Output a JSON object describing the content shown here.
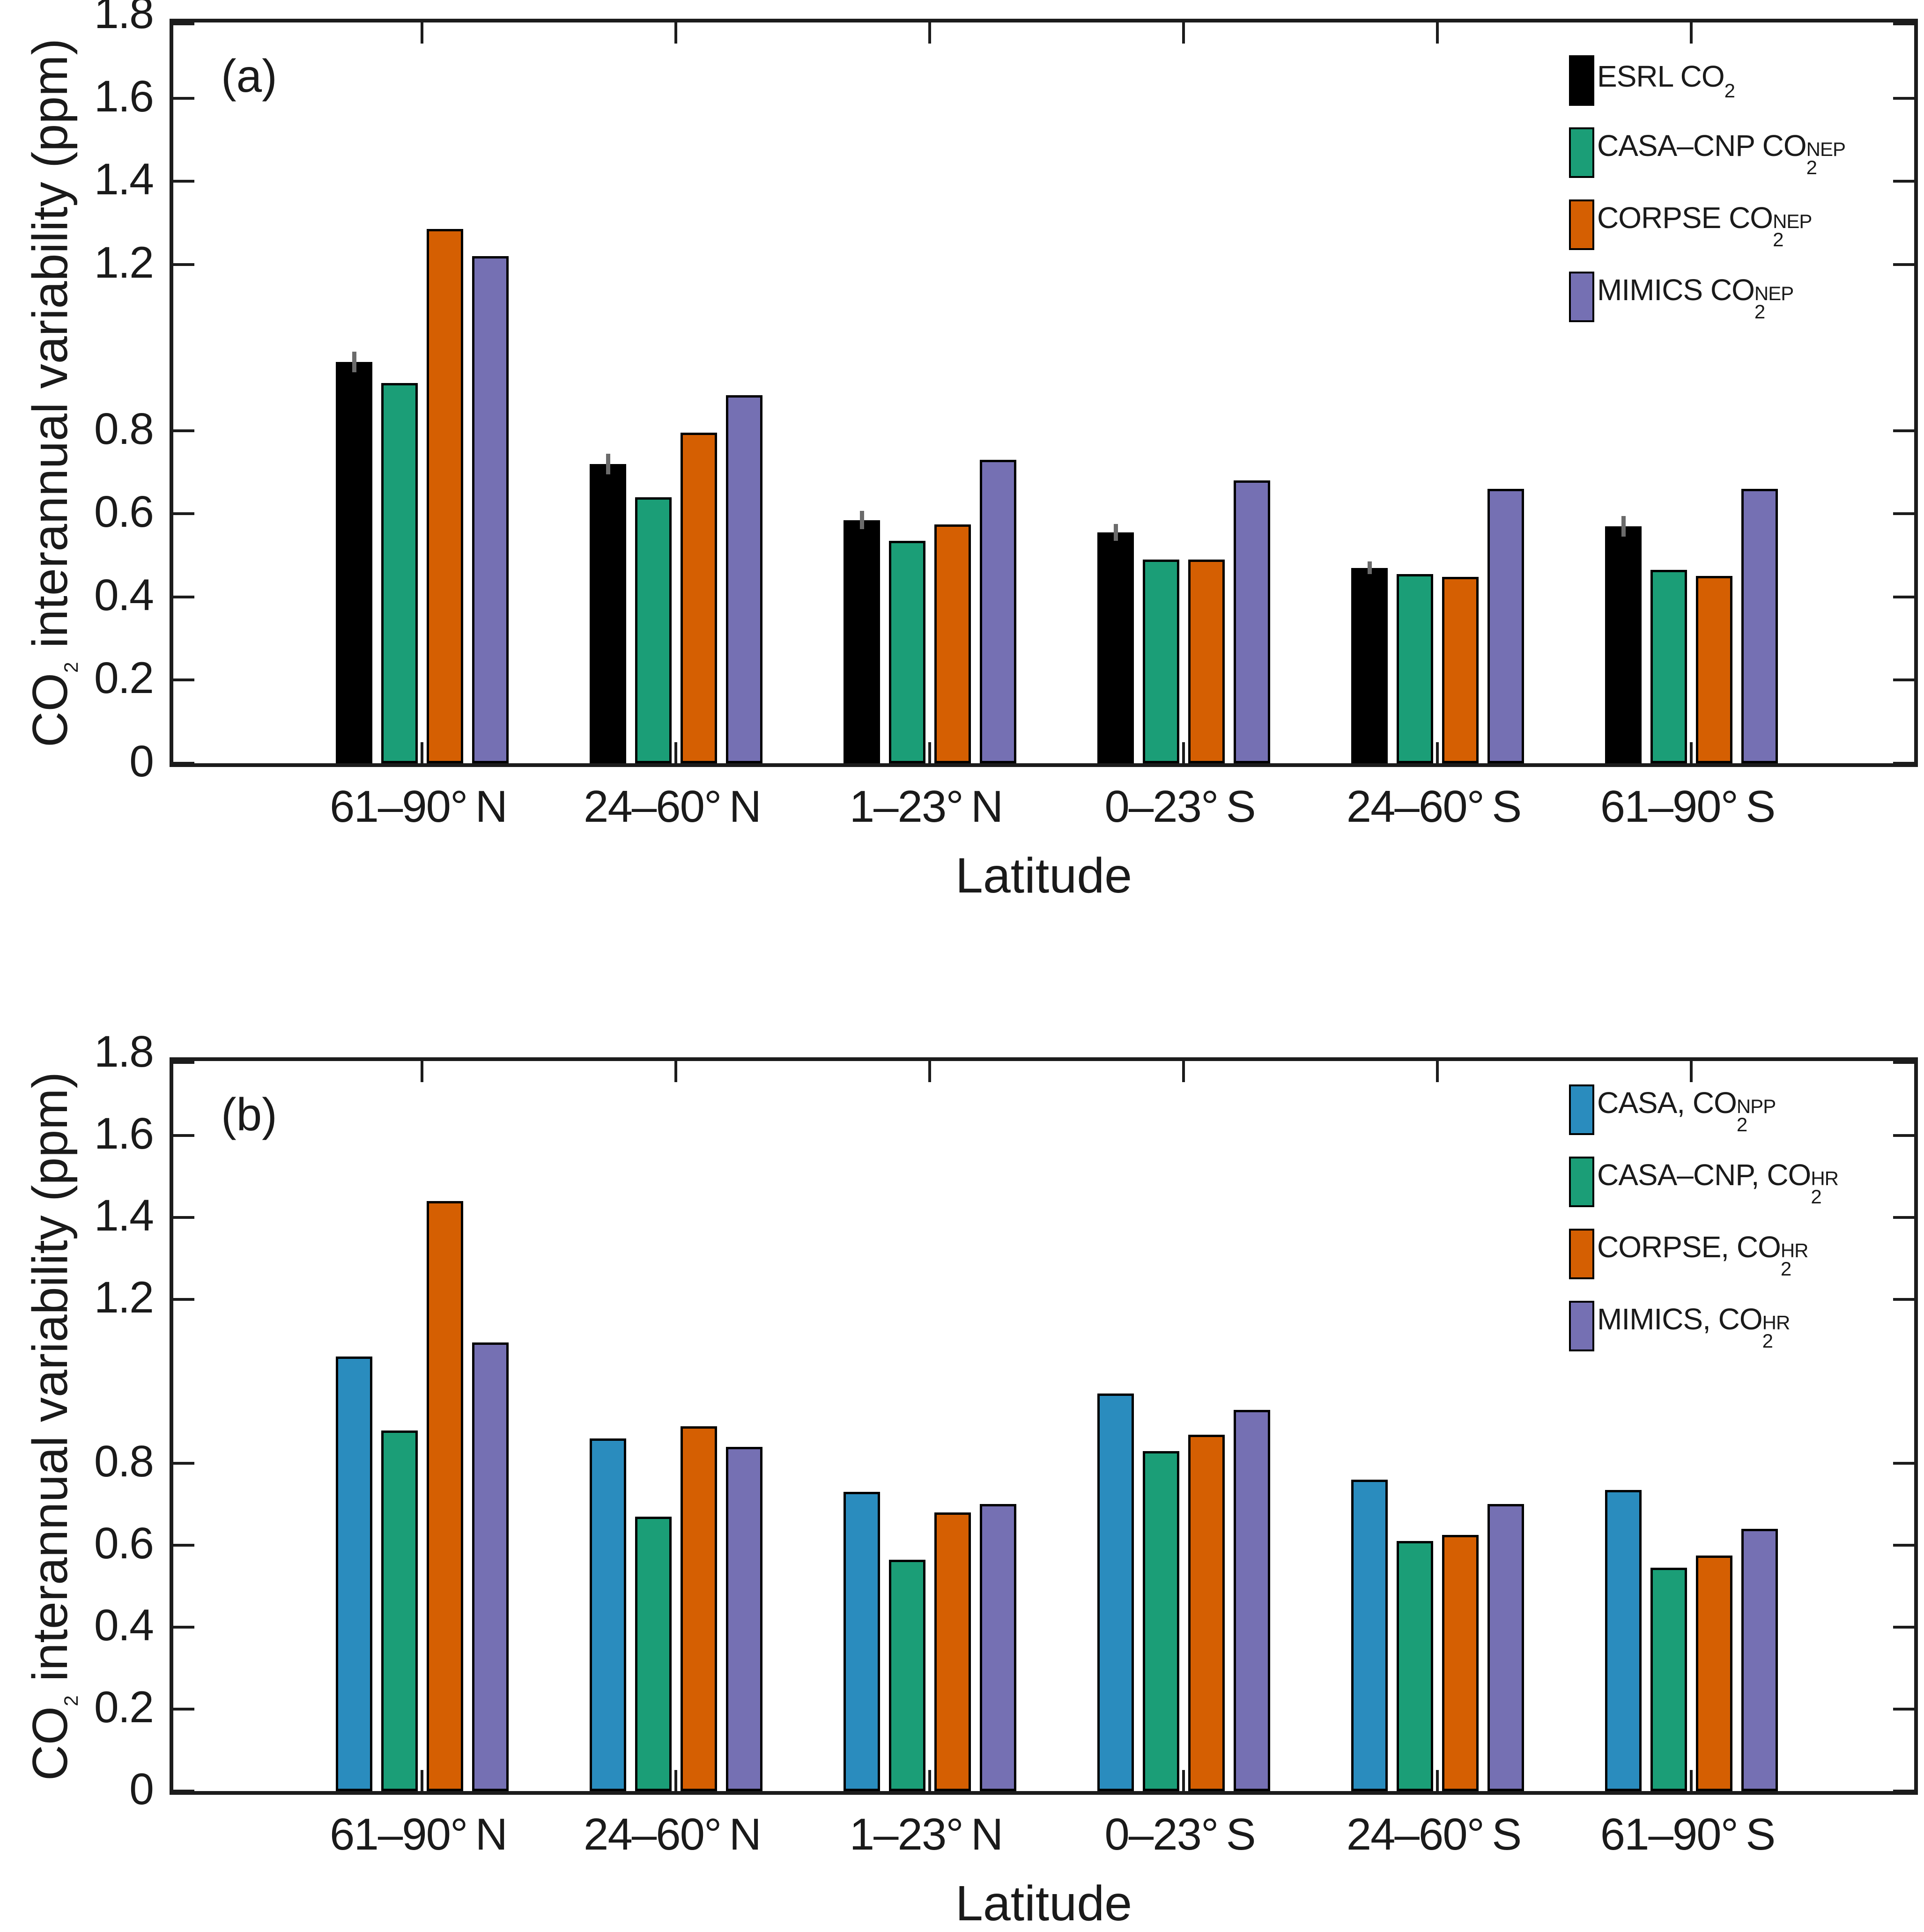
{
  "figure": {
    "panel_letters": [
      "(a)",
      "(b)"
    ],
    "xlabel": "Latitude",
    "ylabel": {
      "pre": "CO",
      "sub": "2",
      "post": " interannual variability (ppm)"
    }
  },
  "colors": {
    "black": "#000000",
    "green": "#1b9e77",
    "orange": "#d55f02",
    "purple": "#7570b3",
    "blue": "#2a8cbe",
    "error_gray": "#6b6b6b",
    "axis": "#1c1c1c"
  },
  "chart_data": [
    {
      "type": "bar",
      "panel_label": "(a)",
      "title": "",
      "xlabel": "Latitude",
      "ylabel": "CO2 interannual variability (ppm)",
      "categories": [
        "61–90° N",
        "24–60° N",
        "1–23° N",
        "0–23° S",
        "24–60° S",
        "61–90° S"
      ],
      "ylim": [
        0,
        1.8
      ],
      "yticks": [
        0,
        0.2,
        0.4,
        0.6,
        0.8,
        1.2,
        1.4,
        1.6,
        1.8
      ],
      "grid": false,
      "legend_position": "top-right",
      "series": [
        {
          "name": "ESRL CO2",
          "legend": {
            "base": "ESRL CO",
            "sub": "2",
            "sup": ""
          },
          "color_key": "black",
          "values": [
            0.965,
            0.72,
            0.585,
            0.555,
            0.47,
            0.57
          ],
          "errors": [
            0.025,
            0.025,
            0.022,
            0.02,
            0.015,
            0.025
          ]
        },
        {
          "name": "CASA–CNP CO2 NEP",
          "legend": {
            "base": "CASA–CNP CO",
            "sub": "2",
            "sup": "NEP"
          },
          "color_key": "green",
          "values": [
            0.915,
            0.64,
            0.535,
            0.49,
            0.455,
            0.465
          ],
          "errors": null
        },
        {
          "name": "CORPSE CO2 NEP",
          "legend": {
            "base": "CORPSE CO",
            "sub": "2",
            "sup": "NEP"
          },
          "color_key": "orange",
          "values": [
            1.285,
            0.795,
            0.575,
            0.49,
            0.448,
            0.45
          ],
          "errors": null
        },
        {
          "name": "MIMICS CO2 NEP",
          "legend": {
            "base": "MIMICS CO",
            "sub": "2",
            "sup": "NEP"
          },
          "color_key": "purple",
          "values": [
            1.22,
            0.885,
            0.73,
            0.68,
            0.66,
            0.66
          ],
          "errors": null
        }
      ]
    },
    {
      "type": "bar",
      "panel_label": "(b)",
      "title": "",
      "xlabel": "Latitude",
      "ylabel": "CO2 interannual variability (ppm)",
      "categories": [
        "61–90° N",
        "24–60° N",
        "1–23° N",
        "0–23° S",
        "24–60° S",
        "61–90° S"
      ],
      "ylim": [
        0,
        1.8
      ],
      "yticks": [
        0,
        0.2,
        0.4,
        0.6,
        0.8,
        1.2,
        1.4,
        1.6,
        1.8
      ],
      "grid": false,
      "legend_position": "top-right",
      "series": [
        {
          "name": "CASA, CO2 NPP",
          "legend": {
            "base": "CASA, CO",
            "sub": "2",
            "sup": "NPP"
          },
          "color_key": "blue",
          "values": [
            1.06,
            0.86,
            0.73,
            0.97,
            0.76,
            0.735
          ],
          "errors": null
        },
        {
          "name": "CASA–CNP, CO2 HR",
          "legend": {
            "base": "CASA–CNP, CO",
            "sub": "2",
            "sup": "HR"
          },
          "color_key": "green",
          "values": [
            0.88,
            0.67,
            0.565,
            0.83,
            0.61,
            0.545
          ],
          "errors": null
        },
        {
          "name": "CORPSE, CO2 HR",
          "legend": {
            "base": "CORPSE, CO",
            "sub": "2",
            "sup": "HR"
          },
          "color_key": "orange",
          "values": [
            1.44,
            0.89,
            0.68,
            0.87,
            0.625,
            0.575
          ],
          "errors": null
        },
        {
          "name": "MIMICS, CO2 HR",
          "legend": {
            "base": "MIMICS, CO",
            "sub": "2",
            "sup": "HR"
          },
          "color_key": "purple",
          "values": [
            1.095,
            0.84,
            0.7,
            0.93,
            0.7,
            0.64
          ],
          "errors": null
        }
      ]
    }
  ]
}
